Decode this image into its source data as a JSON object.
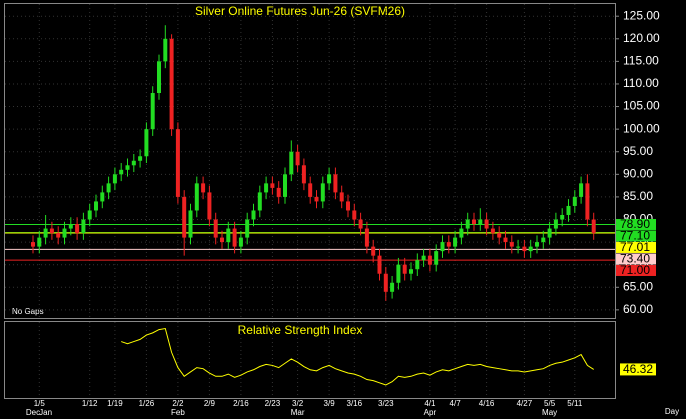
{
  "chart_data": [
    {
      "type": "candlestick",
      "title": "Silver Online Futures Jun-26 (SVFM26)",
      "categories": [
        null,
        "1/5",
        null,
        null,
        null,
        null,
        null,
        null,
        null,
        "1/12",
        null,
        null,
        null,
        "1/19",
        null,
        null,
        null,
        null,
        "1/26",
        null,
        null,
        null,
        null,
        "2/2",
        null,
        null,
        null,
        null,
        "2/9",
        null,
        null,
        null,
        null,
        "2/16",
        null,
        null,
        null,
        null,
        "2/23",
        null,
        null,
        null,
        "3/2",
        null,
        null,
        null,
        null,
        "3/9",
        null,
        null,
        null,
        "3/16",
        null,
        null,
        null,
        null,
        "3/23",
        null,
        null,
        null,
        null,
        null,
        null,
        "4/1",
        null,
        null,
        null,
        "4/7",
        null,
        null,
        null,
        null,
        "4/16",
        null,
        null,
        null,
        null,
        null,
        "4/27",
        null,
        null,
        null,
        "5/5",
        null,
        null,
        null,
        "5/11",
        null,
        null,
        null
      ],
      "months": [
        "Dec",
        null,
        "Jan",
        null,
        null,
        null,
        null,
        null,
        null,
        null,
        null,
        null,
        null,
        null,
        null,
        null,
        null,
        null,
        null,
        null,
        null,
        null,
        null,
        "Feb",
        null,
        null,
        null,
        null,
        null,
        null,
        null,
        null,
        null,
        null,
        null,
        null,
        null,
        null,
        null,
        null,
        null,
        null,
        "Mar",
        null,
        null,
        null,
        null,
        null,
        null,
        null,
        null,
        null,
        null,
        null,
        null,
        null,
        null,
        null,
        null,
        null,
        null,
        null,
        null,
        "Apr",
        null,
        null,
        null,
        null,
        null,
        null,
        null,
        null,
        null,
        null,
        null,
        null,
        null,
        null,
        null,
        null,
        null,
        null,
        "May",
        null,
        null,
        null,
        null,
        null,
        null,
        null
      ],
      "open": [
        75,
        74,
        76,
        78,
        77,
        76,
        78,
        79,
        77,
        80,
        82,
        84,
        86,
        88,
        90,
        91,
        92,
        93,
        94,
        100,
        108,
        115,
        120,
        100,
        85,
        76,
        82,
        88,
        86,
        80,
        76,
        75,
        78,
        74,
        76,
        80,
        82,
        86,
        88,
        87,
        85,
        90,
        95,
        92,
        88,
        85,
        84,
        88,
        90,
        86,
        84,
        82,
        80,
        78,
        74,
        72,
        68,
        64,
        66,
        70,
        68,
        69,
        71,
        72,
        70,
        73,
        75,
        74,
        76,
        78,
        80,
        79,
        80,
        78,
        77,
        76,
        75,
        74,
        74,
        73,
        74,
        75,
        76,
        78,
        80,
        81,
        83,
        85,
        88,
        80
      ],
      "high": [
        76.5,
        77.5,
        81,
        79.5,
        78.5,
        79.5,
        80.5,
        80.5,
        81.5,
        83.5,
        85.5,
        87.5,
        89.5,
        91.5,
        92.5,
        93.5,
        94.5,
        95.5,
        101.5,
        109.5,
        116.5,
        123,
        121,
        101.5,
        86.5,
        83.5,
        89.5,
        89.5,
        87.5,
        81.5,
        77.5,
        79.5,
        79.5,
        77.5,
        81.5,
        83.5,
        87.5,
        89.5,
        89.5,
        88.5,
        91.5,
        97.5,
        96.5,
        93.5,
        89.5,
        86.5,
        89.5,
        91.5,
        91.5,
        87.5,
        85.5,
        83.5,
        81.5,
        79.5,
        75.5,
        73.5,
        69.5,
        67.5,
        71.5,
        71.5,
        70.5,
        72.5,
        73.5,
        73.5,
        74.5,
        76.5,
        76.5,
        77.5,
        79.5,
        81.5,
        81.5,
        82.5,
        81.5,
        79.5,
        78.5,
        77.5,
        76.5,
        75.5,
        75.5,
        75.5,
        76.5,
        77.5,
        79.5,
        81.5,
        82.5,
        84.5,
        86.5,
        89.5,
        90,
        81.5
      ],
      "low": [
        72.5,
        72.5,
        74.5,
        75.5,
        74.5,
        74.5,
        76.5,
        75.5,
        75.5,
        78.5,
        80.5,
        82.5,
        84.5,
        86.5,
        88.5,
        89.5,
        90.5,
        91.5,
        92.5,
        98.5,
        106.5,
        113.5,
        98.5,
        83.5,
        72,
        74.5,
        80.5,
        84.5,
        78.5,
        74.5,
        73.5,
        73.5,
        72.5,
        72.5,
        74.5,
        78.5,
        80.5,
        84.5,
        85.5,
        83.5,
        83.5,
        88.5,
        90.5,
        86.5,
        83.5,
        82.5,
        82.5,
        86.5,
        84.5,
        82.5,
        80.5,
        78.5,
        76.5,
        72.5,
        70.5,
        66.5,
        62,
        62.5,
        64.5,
        66.5,
        66.5,
        67.5,
        69.5,
        68.5,
        68.5,
        71.5,
        72.5,
        72.5,
        74.5,
        76.5,
        77.5,
        77.5,
        76.5,
        75.5,
        74.5,
        73.5,
        72.5,
        72.5,
        71.5,
        71.5,
        72.5,
        73.5,
        74.5,
        76.5,
        78.5,
        79.5,
        81.5,
        83.5,
        78.5,
        75.5
      ],
      "close": [
        74,
        76,
        78,
        77,
        76,
        78,
        79,
        77,
        80,
        82,
        84,
        86,
        88,
        90,
        91,
        92,
        93,
        94,
        100,
        108,
        115,
        120,
        100,
        85,
        76,
        82,
        88,
        86,
        80,
        76,
        75,
        78,
        74,
        76,
        80,
        82,
        86,
        88,
        87,
        85,
        90,
        95,
        92,
        88,
        85,
        84,
        88,
        90,
        86,
        84,
        82,
        80,
        78,
        74,
        72,
        68,
        64,
        66,
        70,
        68,
        69,
        71,
        72,
        70,
        73,
        75,
        74,
        76,
        78,
        80,
        79,
        80,
        78,
        77,
        76,
        75,
        74,
        74,
        73,
        74,
        75,
        76,
        78,
        80,
        81,
        83,
        85,
        88,
        80,
        77
      ],
      "up_color": "#22dd22",
      "down_color": "#ee2222",
      "ylim": [
        58.2,
        127.7
      ],
      "yticks": [
        {
          "value": 60,
          "label": "60.00"
        },
        {
          "value": 65,
          "label": "65.00"
        },
        {
          "value": 70,
          "label": "70.00"
        },
        {
          "value": 75,
          "label": "75.00"
        },
        {
          "value": 80,
          "label": "80.00"
        },
        {
          "value": 85,
          "label": "85.00"
        },
        {
          "value": 90,
          "label": "90.00"
        },
        {
          "value": 95,
          "label": "95.00"
        },
        {
          "value": 100,
          "label": "100.00"
        },
        {
          "value": 105,
          "label": "105.00"
        },
        {
          "value": 110,
          "label": "110.00"
        },
        {
          "value": 115,
          "label": "115.00"
        },
        {
          "value": 120,
          "label": "120.00"
        },
        {
          "value": 125,
          "label": "125.00"
        }
      ],
      "price_lines": [
        {
          "value": 78.9,
          "label": "78.90",
          "color": "#22dd22"
        },
        {
          "value": 77.1,
          "label": "77.10",
          "color": "#22dd22"
        },
        {
          "value": 77.01,
          "label": "77.01",
          "color": "#ffff00"
        },
        {
          "value": 73.4,
          "label": "73.40",
          "color": "#ffcccc"
        },
        {
          "value": 71,
          "label": "71.00",
          "color": "#ee2222"
        }
      ],
      "annotation": "No Gaps",
      "x_axis_label": "Day",
      "grid": true
    },
    {
      "type": "line",
      "title": "Relative Strength Index",
      "color": "#ffff00",
      "ylim": [
        20,
        90
      ],
      "values": [
        null,
        null,
        null,
        null,
        null,
        null,
        null,
        null,
        null,
        null,
        null,
        null,
        null,
        null,
        72,
        70,
        72,
        74,
        78,
        80,
        83,
        84,
        62,
        48,
        40,
        44,
        48,
        47,
        43,
        40,
        40,
        42,
        39,
        41,
        44,
        46,
        49,
        51,
        50,
        48,
        52,
        56,
        53,
        49,
        46,
        45,
        48,
        50,
        47,
        45,
        43,
        42,
        40,
        37,
        36,
        34,
        32,
        35,
        40,
        39,
        40,
        42,
        43,
        41,
        44,
        46,
        45,
        47,
        49,
        51,
        50,
        51,
        49,
        48,
        47,
        46,
        45,
        45,
        44,
        45,
        46,
        47,
        50,
        52,
        53,
        55,
        57,
        60,
        50,
        46.32
      ]
    }
  ]
}
